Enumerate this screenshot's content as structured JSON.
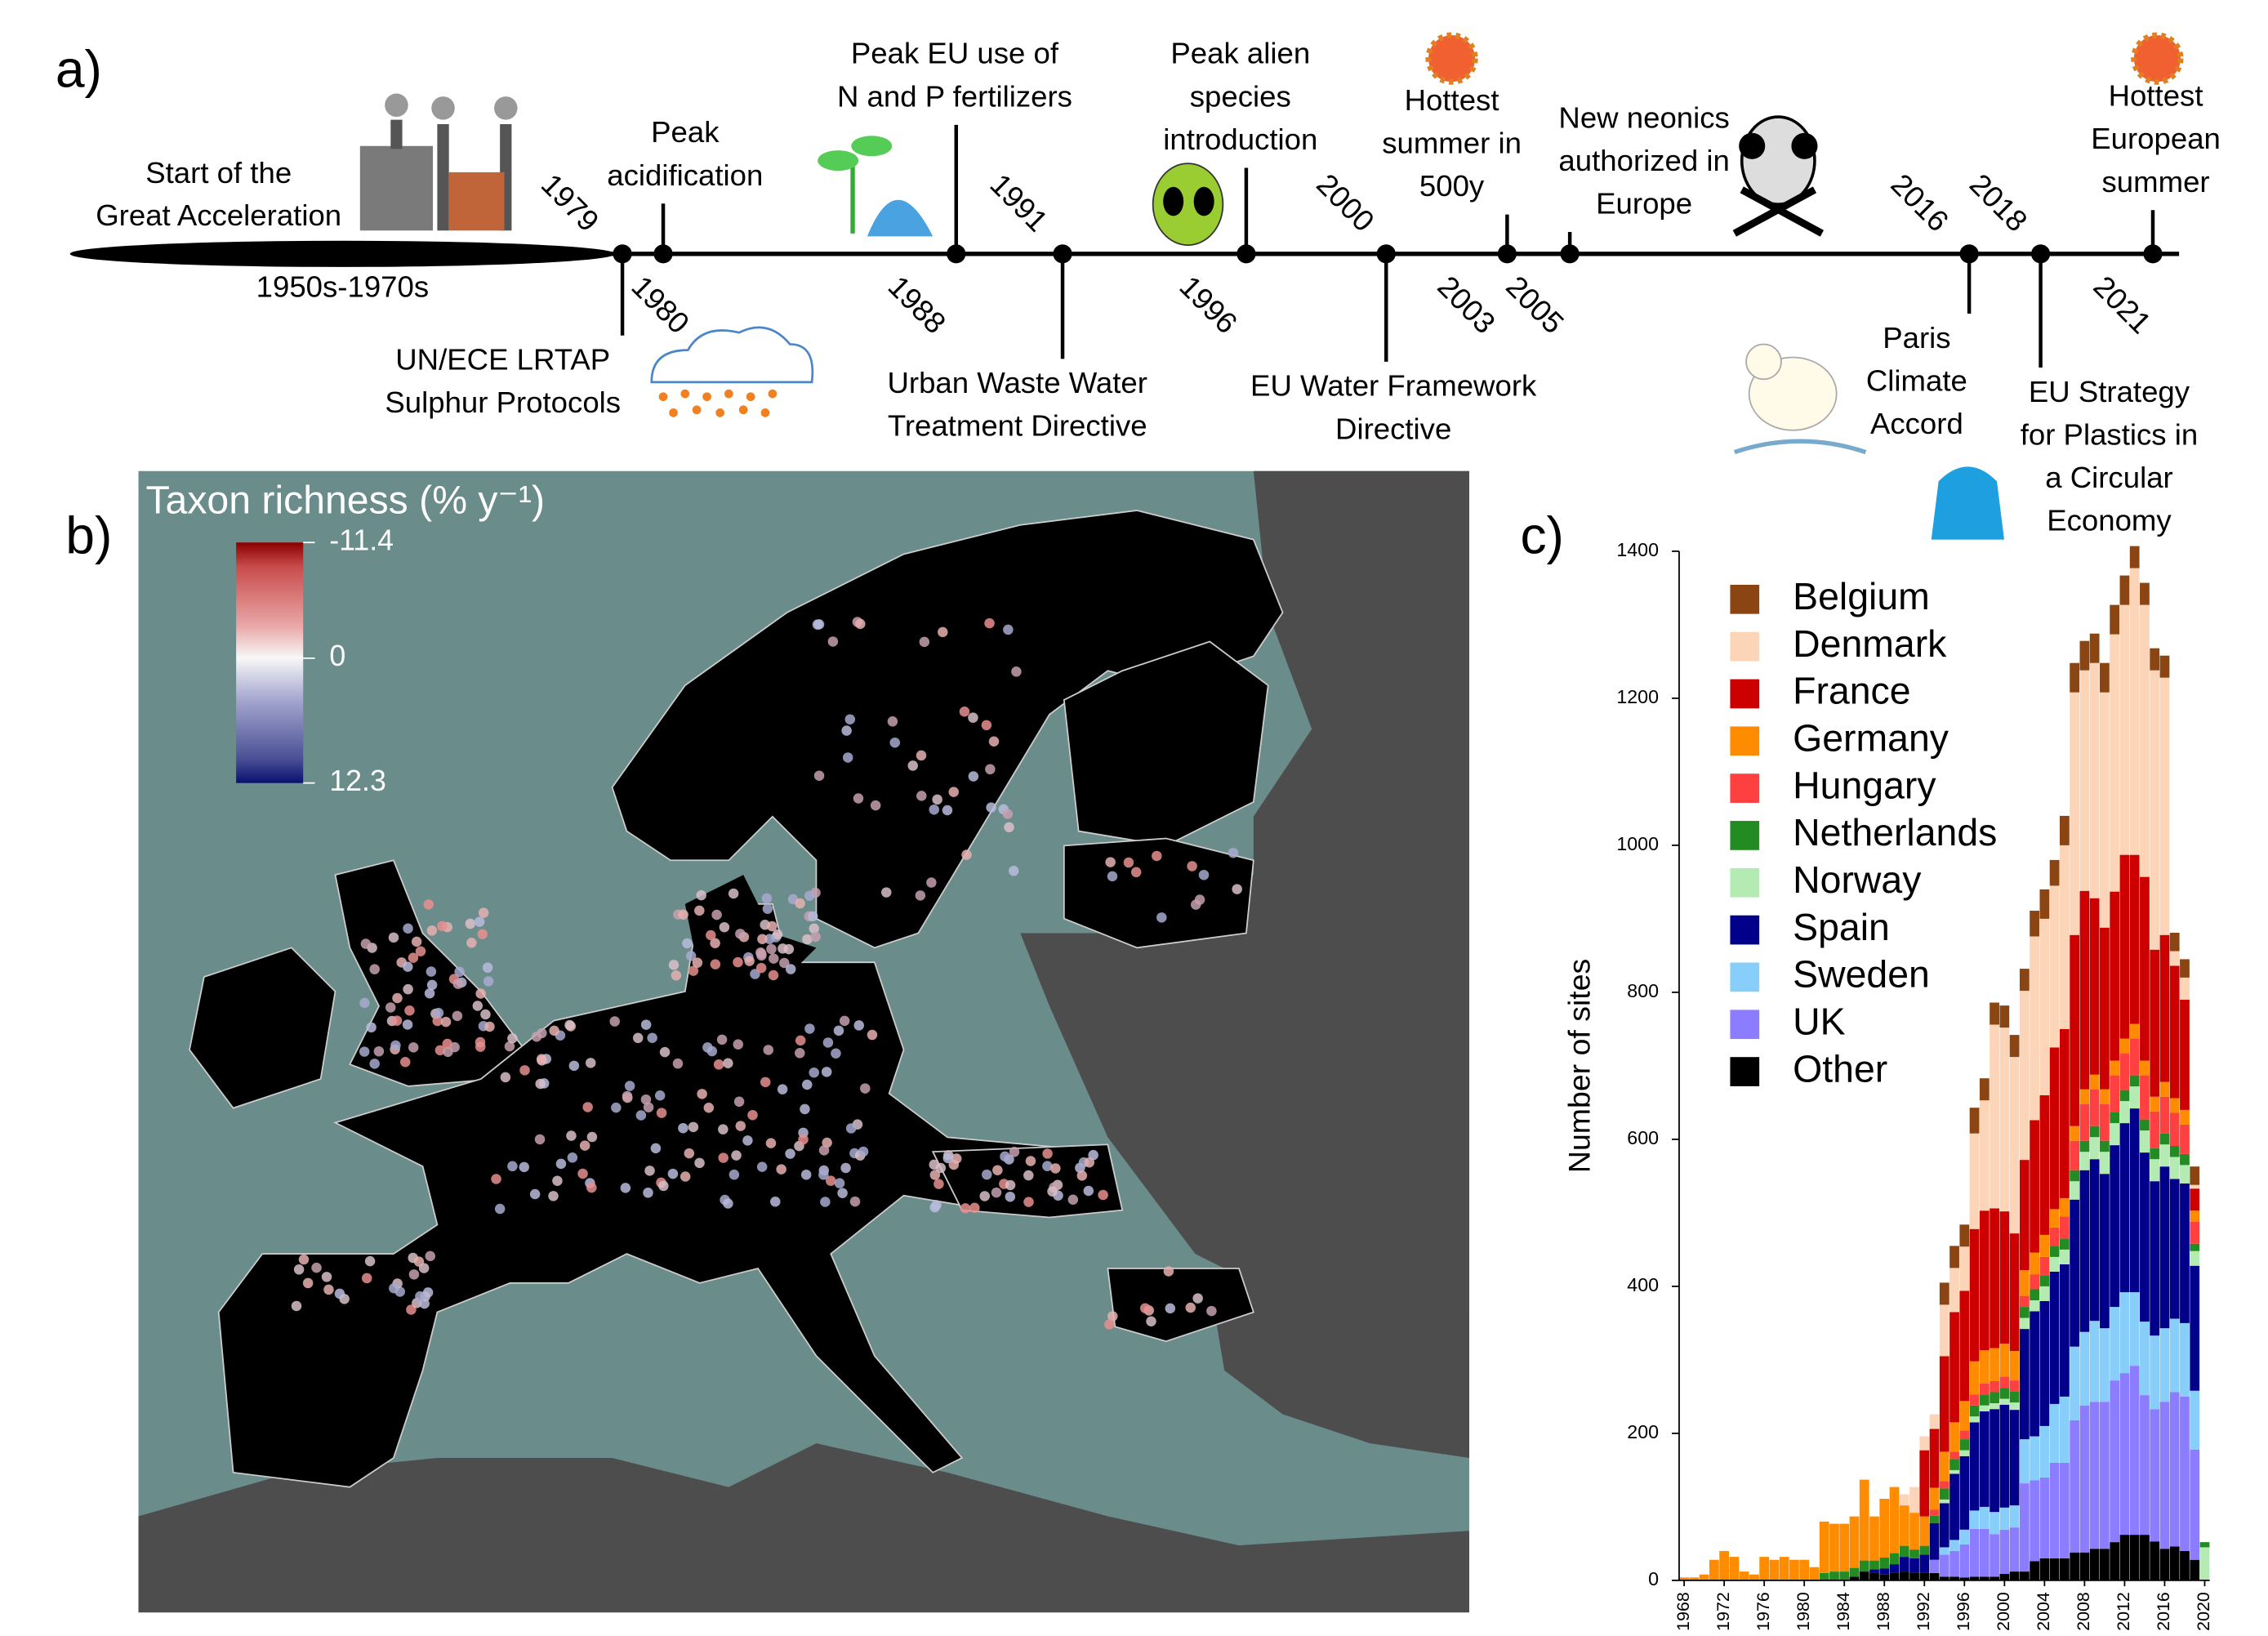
{
  "panel_labels": [
    "a)",
    "b)",
    "c)"
  ],
  "timeline": {
    "era": {
      "label": [
        "Start of the",
        "Great Acceleration"
      ],
      "period": "1950s-1970s"
    },
    "events": [
      {
        "year": 1979,
        "label": [
          "UN/ECE LRTAP",
          "Sulphur Protocols"
        ]
      },
      {
        "year": 1980,
        "label": [
          "Peak",
          "acidification"
        ]
      },
      {
        "year": 1988,
        "label": [
          "Peak EU use of",
          "N and P fertilizers"
        ]
      },
      {
        "year": 1991,
        "label": [
          "Urban Waste Water",
          "Treatment Directive"
        ]
      },
      {
        "year": 1996,
        "label": [
          "Peak alien",
          "species",
          "introduction"
        ]
      },
      {
        "year": 2000,
        "label": [
          "EU Water Framework",
          "Directive"
        ]
      },
      {
        "year": 2003,
        "label": [
          "Hottest",
          "summer in",
          "500y"
        ]
      },
      {
        "year": 2005,
        "label": [
          "New neonics",
          "authorized in",
          "Europe"
        ]
      },
      {
        "year": 2016,
        "label": [
          "Paris",
          "Climate",
          "Accord"
        ]
      },
      {
        "year": 2018,
        "label": [
          "EU Strategy",
          "for Plastics in",
          "a Circular",
          "Economy"
        ]
      },
      {
        "year": 2021,
        "label": [
          "Hottest",
          "European",
          "summer"
        ]
      }
    ]
  },
  "map": {
    "colorbar": {
      "title": "Taxon richness (% y⁻¹)",
      "lim": [
        -11.4,
        12.3
      ],
      "ticks": [
        -11.4,
        0,
        12.3
      ]
    }
  },
  "chart_data": {
    "type": "bar",
    "stacked": true,
    "ylabel": "Number of sites",
    "legend": "upper-left",
    "x": [
      1968,
      1969,
      1970,
      1971,
      1972,
      1973,
      1974,
      1975,
      1976,
      1977,
      1978,
      1979,
      1980,
      1981,
      1982,
      1983,
      1984,
      1985,
      1986,
      1987,
      1988,
      1989,
      1990,
      1991,
      1992,
      1993,
      1994,
      1995,
      1996,
      1997,
      1998,
      1999,
      2000,
      2001,
      2002,
      2003,
      2004,
      2005,
      2006,
      2007,
      2008,
      2009,
      2010,
      2011,
      2012,
      2013,
      2014,
      2015,
      2016,
      2017,
      2018,
      2019,
      2020
    ],
    "xlim": [
      1967.5,
      2020.5
    ],
    "xticks": [
      1968,
      1972,
      1976,
      1980,
      1984,
      1988,
      1992,
      1996,
      2000,
      2004,
      2008,
      2012,
      2016,
      2020
    ],
    "ylim": [
      0,
      1400
    ],
    "yticks": [
      0,
      200,
      400,
      600,
      800,
      1000,
      1200,
      1400
    ],
    "series": [
      {
        "name": "Belgium",
        "color": "#8b4513",
        "values": [
          0,
          0,
          0,
          0,
          0,
          0,
          0,
          0,
          0,
          0,
          0,
          0,
          0,
          0,
          0,
          0,
          0,
          0,
          0,
          0,
          0,
          0,
          0,
          0,
          0,
          0,
          30,
          30,
          30,
          35,
          30,
          30,
          30,
          30,
          30,
          35,
          40,
          35,
          40,
          40,
          40,
          40,
          40,
          40,
          40,
          30,
          30,
          30,
          30,
          25,
          25,
          25,
          0
        ]
      },
      {
        "name": "Denmark",
        "color": "#fcd5b8",
        "values": [
          0,
          0,
          0,
          0,
          0,
          0,
          0,
          0,
          0,
          0,
          0,
          0,
          0,
          0,
          0,
          0,
          0,
          0,
          0,
          0,
          0,
          0,
          15,
          35,
          19,
          20,
          70,
          60,
          60,
          130,
          150,
          250,
          250,
          240,
          230,
          250,
          240,
          220,
          250,
          330,
          300,
          320,
          320,
          350,
          340,
          390,
          370,
          380,
          350,
          20,
          30,
          5,
          0
        ]
      },
      {
        "name": "France",
        "color": "#cc0000",
        "values": [
          0,
          0,
          0,
          0,
          0,
          0,
          0,
          0,
          0,
          0,
          0,
          0,
          0,
          0,
          0,
          0,
          0,
          0,
          0,
          0,
          0,
          0,
          0,
          0,
          90,
          80,
          130,
          150,
          150,
          180,
          190,
          190,
          180,
          160,
          150,
          180,
          190,
          220,
          230,
          260,
          270,
          240,
          220,
          230,
          250,
          230,
          250,
          200,
          200,
          180,
          150,
          30,
          0
        ]
      },
      {
        "name": "Germany",
        "color": "#ff8c00",
        "values": [
          4,
          4,
          8,
          28,
          40,
          32,
          12,
          8,
          32,
          28,
          32,
          28,
          28,
          18,
          70,
          65,
          65,
          70,
          110,
          60,
          80,
          90,
          55,
          50,
          40,
          30,
          40,
          40,
          40,
          45,
          45,
          45,
          45,
          40,
          35,
          30,
          30,
          25,
          25,
          20,
          20,
          20,
          20,
          20,
          20,
          20,
          20,
          20,
          20,
          20,
          20,
          15,
          0
        ]
      },
      {
        "name": "Hungary",
        "color": "#ff4040",
        "values": [
          0,
          0,
          0,
          0,
          0,
          0,
          0,
          0,
          0,
          0,
          0,
          0,
          0,
          0,
          0,
          0,
          0,
          0,
          0,
          0,
          0,
          0,
          0,
          0,
          0,
          8,
          10,
          10,
          12,
          15,
          15,
          15,
          15,
          15,
          15,
          20,
          25,
          25,
          30,
          40,
          50,
          50,
          50,
          50,
          50,
          50,
          60,
          50,
          50,
          45,
          40,
          30,
          0
        ]
      },
      {
        "name": "Netherlands",
        "color": "#228b22",
        "values": [
          0,
          0,
          0,
          0,
          0,
          0,
          0,
          0,
          0,
          0,
          0,
          0,
          0,
          0,
          10,
          12,
          12,
          12,
          15,
          12,
          15,
          15,
          15,
          12,
          12,
          10,
          15,
          15,
          15,
          15,
          15,
          15,
          15,
          15,
          15,
          15,
          15,
          15,
          15,
          15,
          15,
          15,
          15,
          15,
          15,
          15,
          15,
          15,
          15,
          15,
          15,
          10,
          7
        ]
      },
      {
        "name": "Norway",
        "color": "#b3ebb3",
        "values": [
          0,
          0,
          0,
          0,
          0,
          0,
          0,
          0,
          0,
          0,
          0,
          0,
          0,
          0,
          0,
          0,
          0,
          0,
          0,
          0,
          0,
          0,
          0,
          0,
          0,
          0,
          5,
          5,
          8,
          8,
          8,
          8,
          8,
          10,
          15,
          15,
          20,
          20,
          20,
          25,
          25,
          30,
          30,
          30,
          30,
          30,
          30,
          30,
          30,
          30,
          25,
          20,
          45
        ]
      },
      {
        "name": "Spain",
        "color": "#00008b",
        "values": [
          0,
          0,
          0,
          0,
          0,
          0,
          0,
          0,
          0,
          0,
          0,
          0,
          0,
          0,
          0,
          0,
          0,
          0,
          0,
          5,
          8,
          12,
          20,
          20,
          25,
          50,
          60,
          90,
          100,
          120,
          130,
          140,
          140,
          130,
          150,
          170,
          170,
          180,
          180,
          200,
          220,
          220,
          210,
          220,
          230,
          250,
          230,
          210,
          220,
          190,
          190,
          170,
          0
        ]
      },
      {
        "name": "Sweden",
        "color": "#87cefa",
        "values": [
          0,
          0,
          0,
          0,
          0,
          0,
          0,
          0,
          0,
          0,
          0,
          0,
          0,
          0,
          0,
          0,
          0,
          0,
          0,
          0,
          0,
          0,
          0,
          0,
          0,
          0,
          10,
          15,
          20,
          25,
          30,
          30,
          30,
          30,
          60,
          60,
          70,
          80,
          90,
          100,
          100,
          110,
          100,
          100,
          110,
          100,
          100,
          100,
          100,
          100,
          100,
          80,
          0
        ]
      },
      {
        "name": "UK",
        "color": "#8c7cff",
        "values": [
          0,
          0,
          0,
          0,
          0,
          0,
          0,
          0,
          0,
          0,
          0,
          0,
          0,
          0,
          0,
          0,
          0,
          0,
          0,
          0,
          0,
          0,
          0,
          0,
          0,
          18,
          30,
          35,
          45,
          65,
          65,
          58,
          60,
          60,
          120,
          110,
          110,
          130,
          130,
          180,
          200,
          200,
          200,
          220,
          220,
          230,
          190,
          180,
          200,
          210,
          210,
          150,
          0
        ]
      },
      {
        "name": "Other",
        "color": "#000000",
        "values": [
          0,
          0,
          0,
          0,
          0,
          0,
          0,
          0,
          0,
          0,
          0,
          0,
          0,
          0,
          0,
          0,
          0,
          5,
          12,
          10,
          8,
          10,
          12,
          10,
          10,
          10,
          5,
          5,
          4,
          5,
          5,
          5,
          9,
          12,
          12,
          26,
          30,
          30,
          30,
          38,
          38,
          43,
          43,
          52,
          62,
          62,
          62,
          53,
          43,
          46,
          40,
          28,
          0
        ]
      }
    ]
  }
}
